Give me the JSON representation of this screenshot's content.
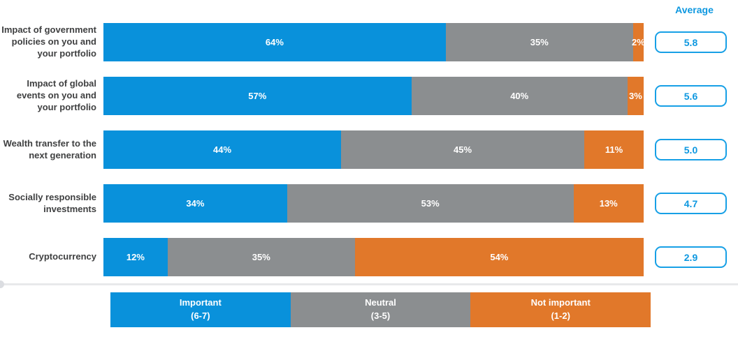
{
  "header": {
    "average_label": "Average"
  },
  "colors": {
    "important": "#0991DB",
    "neutral": "#8B8E90",
    "not_important": "#E1782A",
    "average_accent": "#0E98E0",
    "row_label_text": "#3F4041",
    "divider": "#E8E9EB"
  },
  "rows": [
    {
      "label": "Impact of government policies on you and your portfolio",
      "segments": [
        {
          "value": 64,
          "pct": "64%"
        },
        {
          "value": 35,
          "pct": "35%"
        },
        {
          "value": 2,
          "pct": "2%"
        }
      ],
      "average": "5.8"
    },
    {
      "label": "Impact of global events on you and your portfolio",
      "segments": [
        {
          "value": 57,
          "pct": "57%"
        },
        {
          "value": 40,
          "pct": "40%"
        },
        {
          "value": 3,
          "pct": "3%"
        }
      ],
      "average": "5.6"
    },
    {
      "label": "Wealth transfer to the next generation",
      "segments": [
        {
          "value": 44,
          "pct": "44%"
        },
        {
          "value": 45,
          "pct": "45%"
        },
        {
          "value": 11,
          "pct": "11%"
        }
      ],
      "average": "5.0"
    },
    {
      "label": "Socially responsible investments",
      "segments": [
        {
          "value": 34,
          "pct": "34%"
        },
        {
          "value": 53,
          "pct": "53%"
        },
        {
          "value": 13,
          "pct": "13%"
        }
      ],
      "average": "4.7"
    },
    {
      "label": "Cryptocurrency",
      "segments": [
        {
          "value": 12,
          "pct": "12%"
        },
        {
          "value": 35,
          "pct": "35%"
        },
        {
          "value": 54,
          "pct": "54%"
        }
      ],
      "average": "2.9"
    }
  ],
  "legend": [
    {
      "label": "Important",
      "range": "(6-7)"
    },
    {
      "label": "Neutral",
      "range": "(3-5)"
    },
    {
      "label": "Not important",
      "range": "(1-2)"
    }
  ],
  "chart_data": {
    "type": "bar",
    "orientation": "horizontal_stacked",
    "title": "",
    "xlabel": "",
    "ylabel": "",
    "unit": "%",
    "categories": [
      "Impact of government policies on you and your portfolio",
      "Impact of global events on you and your portfolio",
      "Wealth transfer to the next generation",
      "Socially responsible investments",
      "Cryptocurrency"
    ],
    "series": [
      {
        "name": "Important (6-7)",
        "color": "#0991DB",
        "values": [
          64,
          57,
          44,
          34,
          12
        ]
      },
      {
        "name": "Neutral (3-5)",
        "color": "#8B8E90",
        "values": [
          35,
          40,
          45,
          53,
          35
        ]
      },
      {
        "name": "Not important (1-2)",
        "color": "#E1782A",
        "values": [
          2,
          3,
          11,
          13,
          54
        ]
      }
    ],
    "averages": [
      5.8,
      5.6,
      5.0,
      4.7,
      2.9
    ],
    "average_column_label": "Average",
    "legend_position": "bottom",
    "grid": false,
    "xlim": [
      0,
      100
    ]
  }
}
